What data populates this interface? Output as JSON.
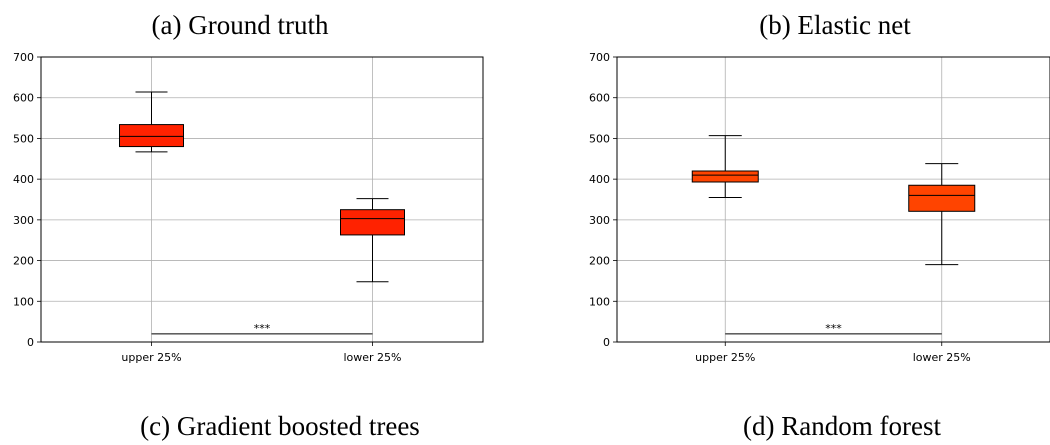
{
  "panel_titles": {
    "a": "(a) Ground truth",
    "b": "(b) Elastic net",
    "c": "(c) Gradient boosted trees",
    "d": "(d) Random forest"
  },
  "colors": {
    "box_fill_a": "#FF2200",
    "box_fill_b": "#FF4400",
    "box_edge": "#000000",
    "grid": "#b0b0b0"
  },
  "chart_data": [
    {
      "type": "box",
      "title": "(a) Ground truth",
      "categories": [
        "upper 25%",
        "lower 25%"
      ],
      "boxes": [
        {
          "category": "upper 25%",
          "whisker_low": 467,
          "q1": 480,
          "median": 505,
          "q3": 534,
          "whisker_high": 614
        },
        {
          "category": "lower 25%",
          "whisker_low": 148,
          "q1": 263,
          "median": 303,
          "q3": 325,
          "whisker_high": 352
        }
      ],
      "yticks": [
        0,
        100,
        200,
        300,
        400,
        500,
        600,
        700
      ],
      "ylim": [
        0,
        700
      ],
      "grid": true,
      "significance": {
        "label": "***",
        "y": 20,
        "from": "upper 25%",
        "to": "lower 25%"
      }
    },
    {
      "type": "box",
      "title": "(b) Elastic net",
      "categories": [
        "upper 25%",
        "lower 25%"
      ],
      "boxes": [
        {
          "category": "upper 25%",
          "whisker_low": 355,
          "q1": 393,
          "median": 410,
          "q3": 420,
          "whisker_high": 507
        },
        {
          "category": "lower 25%",
          "whisker_low": 190,
          "q1": 321,
          "median": 360,
          "q3": 385,
          "whisker_high": 438
        }
      ],
      "yticks": [
        0,
        100,
        200,
        300,
        400,
        500,
        600,
        700
      ],
      "ylim": [
        0,
        700
      ],
      "grid": true,
      "significance": {
        "label": "***",
        "y": 20,
        "from": "upper 25%",
        "to": "lower 25%"
      }
    }
  ]
}
